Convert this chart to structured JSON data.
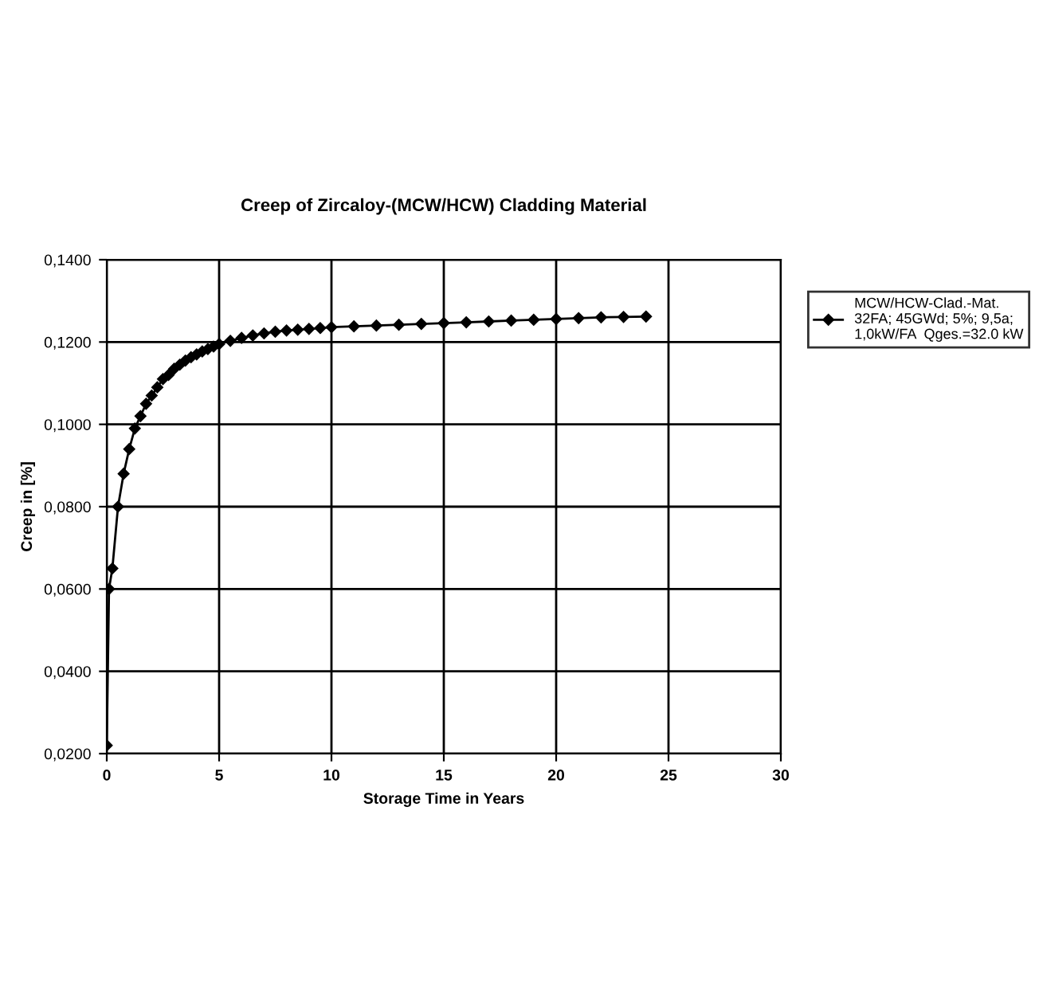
{
  "chart_data": {
    "type": "line",
    "title": "Creep of Zircaloy-(MCW/HCW) Cladding Material",
    "xlabel": "Storage Time in Years",
    "ylabel": "Creep in [%]",
    "x": [
      0,
      0.1,
      0.25,
      0.5,
      0.75,
      1,
      1.25,
      1.5,
      1.75,
      2,
      2.25,
      2.5,
      2.75,
      3,
      3.25,
      3.5,
      3.75,
      4,
      4.25,
      4.5,
      4.75,
      5,
      5.5,
      6,
      6.5,
      7,
      7.5,
      8,
      8.5,
      9,
      9.5,
      10,
      11,
      12,
      13,
      14,
      15,
      16,
      17,
      18,
      19,
      20,
      21,
      22,
      23,
      24
    ],
    "series": [
      {
        "name": "MCW/HCW-Clad.-Mat.\n32FA; 45GWd; 5%; 9,5a;\n1,0kW/FA  Qges.=32.0 kW",
        "color": "#000000",
        "values": [
          0.022,
          0.06,
          0.065,
          0.08,
          0.088,
          0.094,
          0.099,
          0.102,
          0.105,
          0.107,
          0.109,
          0.111,
          0.112,
          0.1135,
          0.1145,
          0.1155,
          0.1163,
          0.117,
          0.1177,
          0.1183,
          0.1189,
          0.1195,
          0.1203,
          0.121,
          0.1216,
          0.1221,
          0.1225,
          0.1228,
          0.123,
          0.1232,
          0.1234,
          0.1236,
          0.1238,
          0.124,
          0.1242,
          0.1244,
          0.1246,
          0.1248,
          0.125,
          0.1252,
          0.1254,
          0.1256,
          0.1258,
          0.126,
          0.1261,
          0.1262
        ]
      }
    ],
    "xlim": [
      0,
      30
    ],
    "xticks": [
      0,
      5,
      10,
      15,
      20,
      25,
      30
    ],
    "ylim": [
      0.02,
      0.14
    ],
    "yticks": [
      {
        "value": 0.02,
        "label": "0,0200"
      },
      {
        "value": 0.04,
        "label": "0,0400"
      },
      {
        "value": 0.06,
        "label": "0,0600"
      },
      {
        "value": 0.08,
        "label": "0,0800"
      },
      {
        "value": 0.1,
        "label": "0,1000"
      },
      {
        "value": 0.12,
        "label": "0,1200"
      },
      {
        "value": 0.14,
        "label": "0,1400"
      }
    ],
    "grid": true,
    "legend": "right",
    "marker": "diamond",
    "line_style": "solid"
  }
}
